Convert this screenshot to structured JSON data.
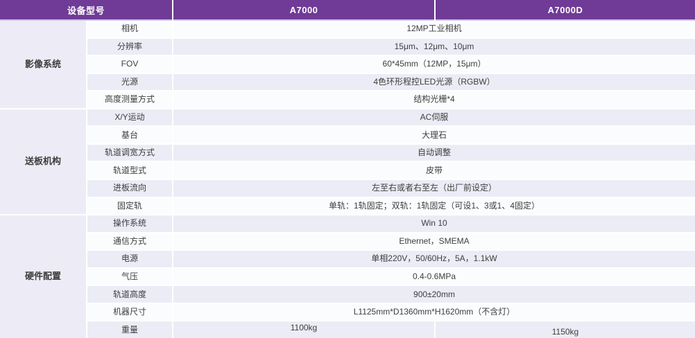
{
  "table": {
    "header": {
      "model_label": "设备型号",
      "columns": [
        "A7000",
        "A7000D"
      ]
    },
    "groups": [
      {
        "name": "影像系统",
        "rows": [
          {
            "label": "相机",
            "value": "12MP工业相机"
          },
          {
            "label": "分辨率",
            "value": "15μm、12μm、10μm"
          },
          {
            "label": "FOV",
            "value": "60*45mm（12MP，15μm）"
          },
          {
            "label": "光源",
            "value": "4色环形程控LED光源（RGBW）"
          },
          {
            "label": "高度测量方式",
            "value": "结构光栅*4"
          }
        ]
      },
      {
        "name": "送板机构",
        "rows": [
          {
            "label": "X/Y运动",
            "value": "AC伺服"
          },
          {
            "label": "基台",
            "value": "大理石"
          },
          {
            "label": "轨道调宽方式",
            "value": "自动调整"
          },
          {
            "label": "轨道型式",
            "value": "皮带"
          },
          {
            "label": "进板流向",
            "value": "左至右或者右至左（出厂前设定）"
          },
          {
            "label": "固定轨",
            "value": "单轨：1轨固定；双轨：1轨固定（可设1、3或1、4固定）"
          }
        ]
      },
      {
        "name": "硬件配置",
        "rows": [
          {
            "label": "操作系统",
            "value": "Win 10"
          },
          {
            "label": "通信方式",
            "value": "Ethernet，SMEMA"
          },
          {
            "label": "电源",
            "value": "单相220V，50/60Hz，5A，1.1kW"
          },
          {
            "label": "气压",
            "value": "0.4-0.6MPa"
          },
          {
            "label": "轨道高度",
            "value": "900±20mm"
          },
          {
            "label": "机器尺寸",
            "value": "L1125mm*D1360mm*H1620mm（不含灯）"
          },
          {
            "label": "重量",
            "split_values": [
              "1100kg",
              "1150kg"
            ]
          }
        ]
      }
    ],
    "colors": {
      "header_bg": "#6F3B96",
      "header_text": "#FFFFFF",
      "header_underline": "#CFC6E0",
      "row_bg": "#FBFCFE",
      "row_alt_bg": "#ECECF6",
      "group_bg": "#EDECF6",
      "text": "#3D3D3D"
    }
  }
}
